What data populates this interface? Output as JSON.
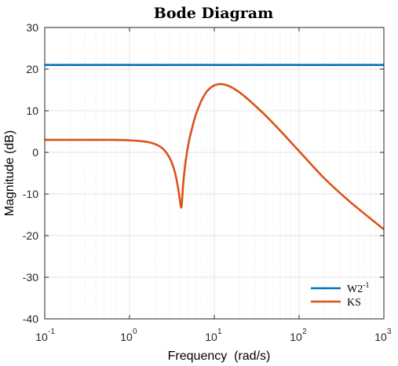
{
  "chart_data": {
    "type": "line",
    "title": "Bode Diagram",
    "xlabel": "Frequency  (rad/s)",
    "ylabel": "Magnitude (dB)",
    "xscale": "log",
    "xlim": [
      0.1,
      1000
    ],
    "ylim": [
      -40,
      30
    ],
    "x_ticks": [
      {
        "base": "10",
        "exp": "-1"
      },
      {
        "base": "10",
        "exp": "0"
      },
      {
        "base": "10",
        "exp": "1"
      },
      {
        "base": "10",
        "exp": "2"
      },
      {
        "base": "10",
        "exp": "3"
      }
    ],
    "y_ticks": [
      "30",
      "20",
      "10",
      "0",
      "-10",
      "-20",
      "-30",
      "-40"
    ],
    "grid": true,
    "legend_position": "bottom-right",
    "series": [
      {
        "name": "W2",
        "name_sup": "-1",
        "color": "#0072BD",
        "x": [
          0.1,
          1000
        ],
        "y": [
          21,
          21
        ]
      },
      {
        "name": "KS",
        "color": "#D95319",
        "x": [
          0.1,
          0.3,
          0.6,
          1.0,
          1.5,
          2.0,
          2.5,
          3.0,
          3.4,
          3.7,
          3.9,
          4.05,
          4.15,
          4.3,
          4.6,
          5.0,
          5.5,
          6.0,
          7.0,
          8.0,
          9.0,
          10.0,
          11.0,
          12.0,
          13.0,
          15.0,
          18.0,
          22.0,
          30.0,
          40.0,
          60.0,
          100.0,
          200.0,
          400.0,
          1000.0
        ],
        "y": [
          3.0,
          3.0,
          3.0,
          2.9,
          2.6,
          2.0,
          0.8,
          -1.5,
          -4.5,
          -8.0,
          -11.0,
          -13.2,
          -12.0,
          -7.5,
          -2.0,
          2.5,
          6.0,
          8.8,
          12.3,
          14.4,
          15.5,
          16.1,
          16.35,
          16.4,
          16.3,
          15.9,
          15.0,
          13.7,
          11.3,
          8.9,
          5.2,
          0.3,
          -6.3,
          -11.9,
          -18.5
        ]
      }
    ]
  }
}
